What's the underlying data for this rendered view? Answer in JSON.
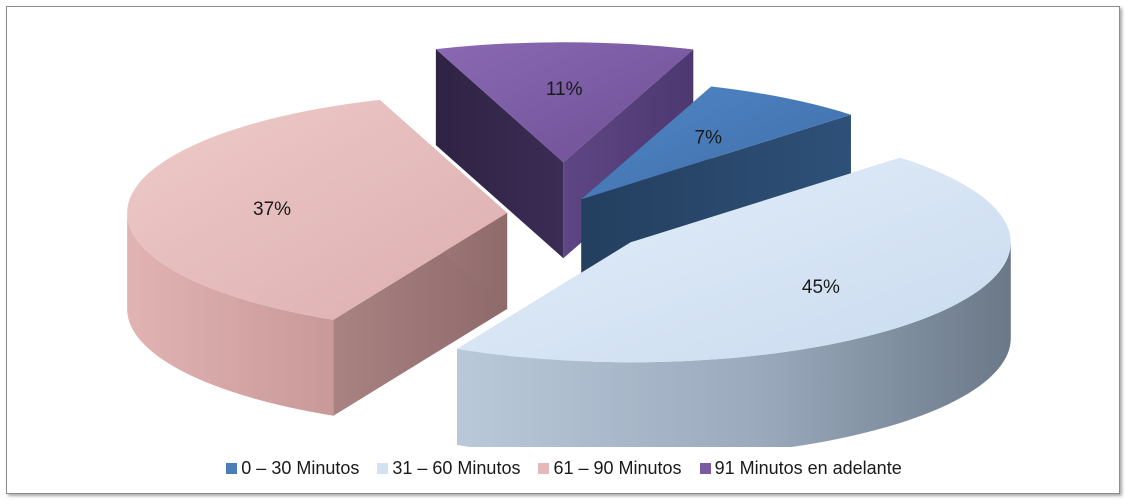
{
  "chart_data": {
    "type": "pie",
    "title": "",
    "categories": [
      "0 – 30 Minutos",
      "31 – 60 Minutos",
      "61 – 90 Minutos",
      "91 Minutos en adelante"
    ],
    "values": [
      7,
      45,
      37,
      11
    ],
    "labels": [
      "7%",
      "45%",
      "37%",
      "11%"
    ],
    "colors": [
      "#4a7ebb",
      "#d3e2f2",
      "#e4b9b9",
      "#7a5aa0"
    ],
    "style": "3d-exploded",
    "legend_position": "bottom"
  }
}
